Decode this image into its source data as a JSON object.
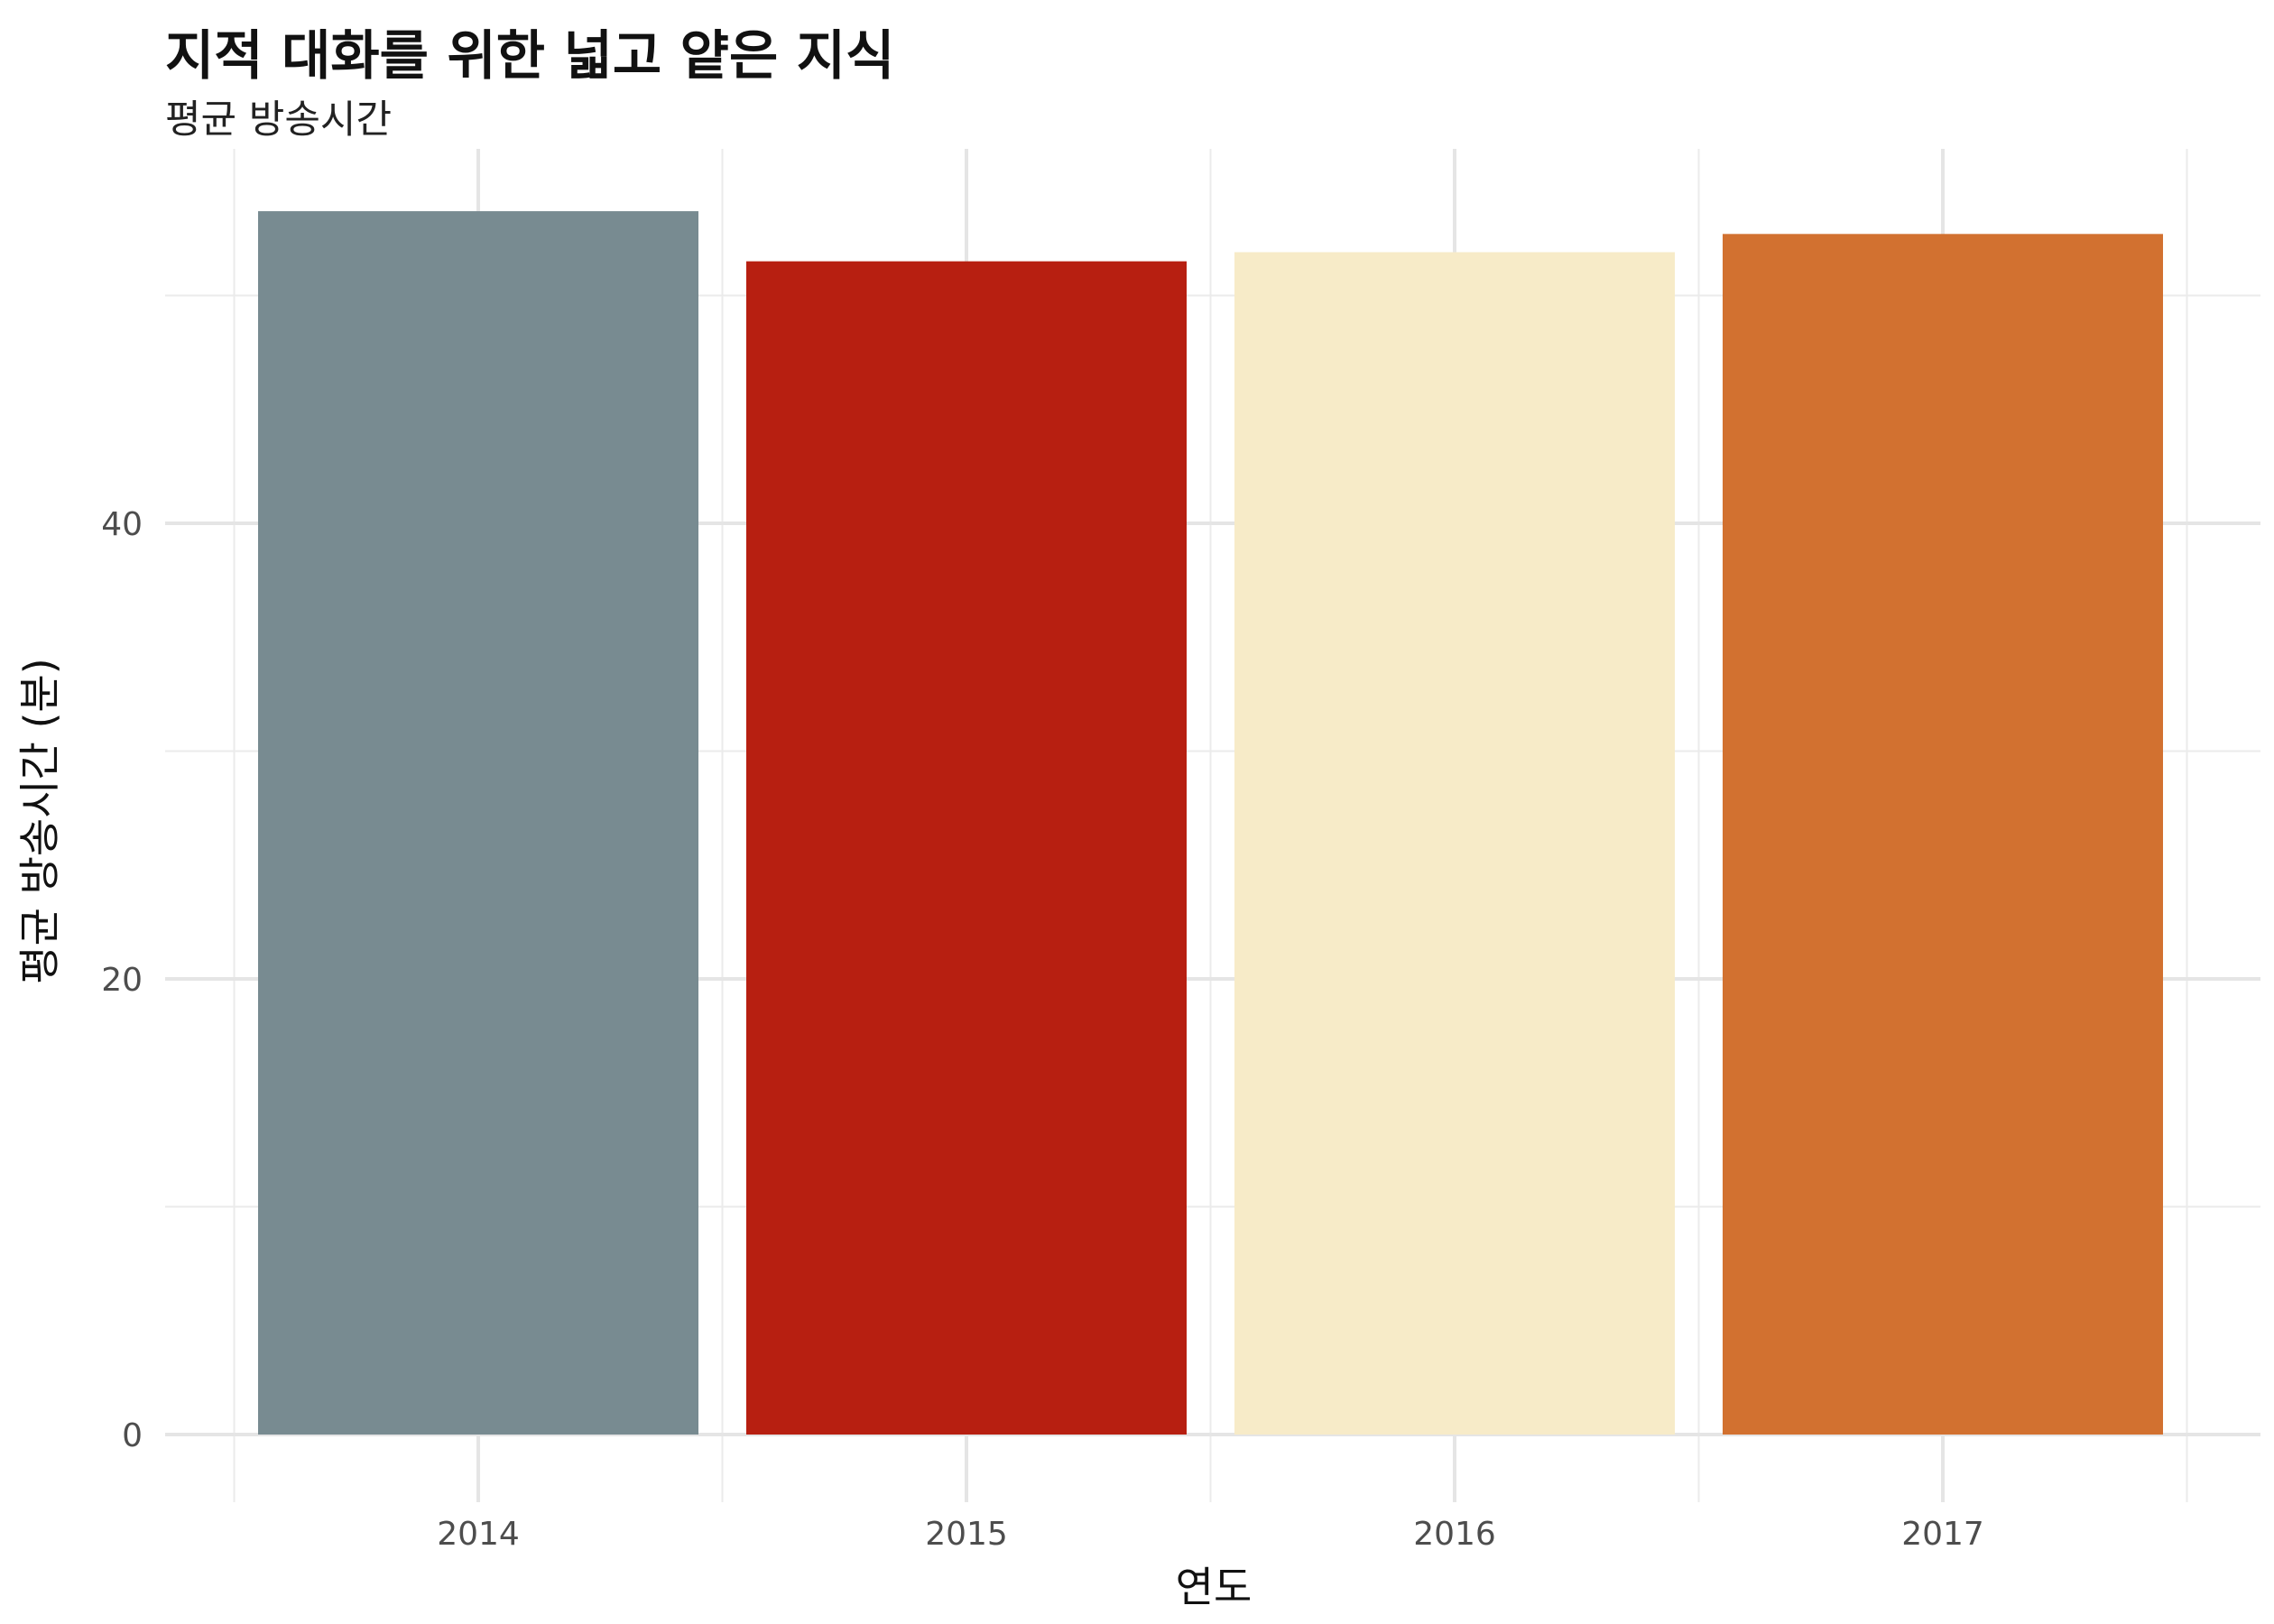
{
  "chart_data": {
    "type": "bar",
    "title": "지적 대화를 위한 넓고 얕은 지식",
    "subtitle": "평균 방송시간",
    "xlabel": "연도",
    "ylabel": "평균 방송시간 (분)",
    "categories": [
      "2014",
      "2015",
      "2016",
      "2017"
    ],
    "values": [
      53.7,
      51.5,
      51.9,
      52.7
    ],
    "colors": [
      "#788b91",
      "#b71f11",
      "#f7ebc8",
      "#d27130"
    ],
    "ylim": [
      -1.5,
      56.5
    ],
    "yticks": [
      0,
      20,
      40
    ],
    "grid": true,
    "legend": "none"
  }
}
